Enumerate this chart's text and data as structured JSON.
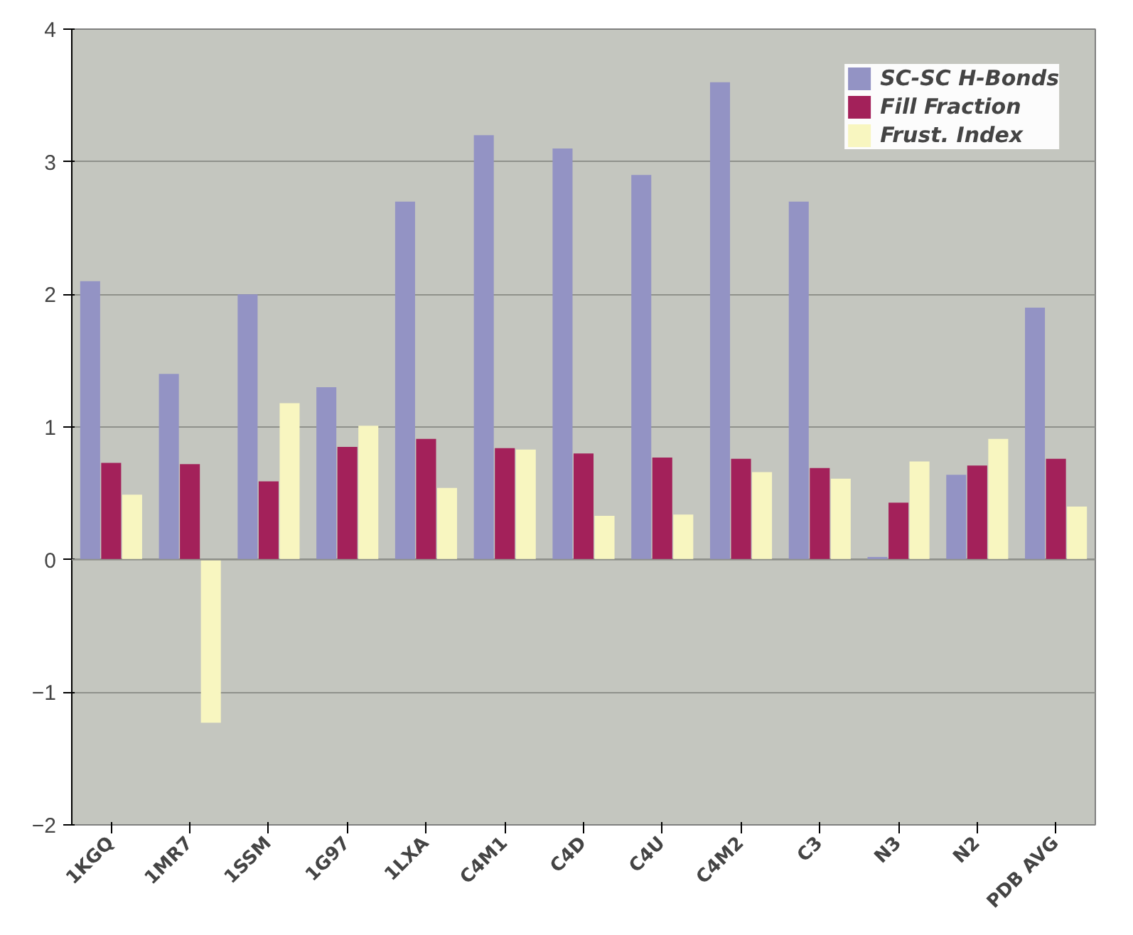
{
  "chart_data": {
    "type": "bar",
    "categories": [
      "1KGQ",
      "1MR7",
      "1SSM",
      "1G97",
      "1LXA",
      "C4M1",
      "C4D",
      "C4U",
      "C4M2",
      "C3",
      "N3",
      "N2",
      "PDB AVG"
    ],
    "series": [
      {
        "name": "SC-SC H-Bonds",
        "color": "#9393c4",
        "values": [
          2.1,
          1.4,
          2.0,
          1.3,
          2.7,
          3.2,
          3.1,
          2.9,
          3.6,
          2.7,
          0.02,
          0.64,
          1.9
        ]
      },
      {
        "name": "Fill Fraction",
        "color": "#a3215a",
        "values": [
          0.73,
          0.72,
          0.59,
          0.85,
          0.91,
          0.84,
          0.8,
          0.77,
          0.76,
          0.69,
          0.43,
          0.71,
          0.76
        ]
      },
      {
        "name": "Frust. Index",
        "color": "#f8f6c0",
        "values": [
          0.49,
          -1.23,
          1.18,
          1.01,
          0.54,
          0.83,
          0.33,
          0.34,
          0.66,
          0.61,
          0.74,
          0.91,
          0.4
        ]
      }
    ],
    "ylim": [
      -2,
      4
    ],
    "yticks": [
      -2,
      -1,
      0,
      1,
      2,
      3,
      4
    ],
    "grid": "y",
    "legend": "top right"
  }
}
